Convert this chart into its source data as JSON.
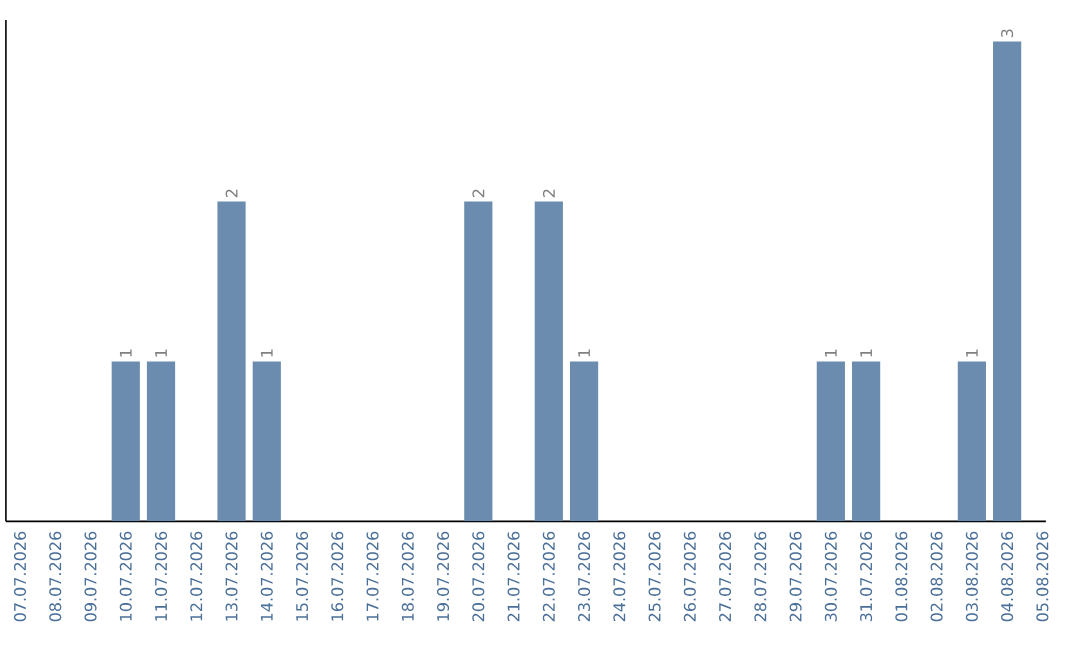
{
  "chart_data": {
    "type": "bar",
    "relative": false,
    "categories": [
      "07.07.2026",
      "08.07.2026",
      "09.07.2026",
      "10.07.2026",
      "11.07.2026",
      "12.07.2026",
      "13.07.2026",
      "14.07.2026",
      "15.07.2026",
      "16.07.2026",
      "17.07.2026",
      "18.07.2026",
      "19.07.2026",
      "20.07.2026",
      "21.07.2026",
      "22.07.2026",
      "23.07.2026",
      "24.07.2026",
      "25.07.2026",
      "26.07.2026",
      "27.07.2026",
      "28.07.2026",
      "29.07.2026",
      "30.07.2026",
      "31.07.2026",
      "01.08.2026",
      "02.08.2026",
      "03.08.2026",
      "04.08.2026",
      "05.08.2026"
    ],
    "values": [
      0,
      0,
      0,
      1,
      1,
      0,
      2,
      1,
      0,
      0,
      0,
      0,
      0,
      2,
      0,
      2,
      1,
      0,
      0,
      0,
      0,
      0,
      0,
      1,
      1,
      0,
      0,
      1,
      3,
      0
    ],
    "value_labels": [
      null,
      null,
      null,
      "1",
      "1",
      null,
      "2",
      "1",
      null,
      null,
      null,
      null,
      null,
      "2",
      null,
      "2",
      "1",
      null,
      null,
      null,
      null,
      null,
      null,
      "1",
      "1",
      null,
      null,
      "1",
      "3",
      null
    ],
    "color": "#6b8cae"
  }
}
